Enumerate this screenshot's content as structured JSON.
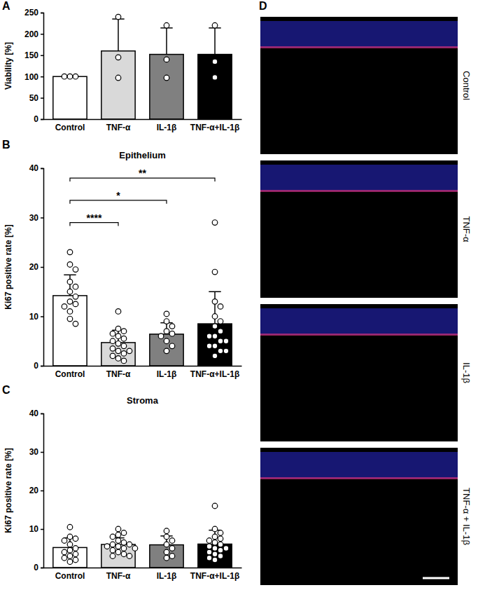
{
  "chart_data": [
    {
      "type": "bar",
      "panel": "A",
      "y_label": "Viability [%]",
      "categories": [
        "Control",
        "TNF-α",
        "IL-1β",
        "TNF-α+IL-1β"
      ],
      "values": [
        100,
        160,
        152,
        152
      ],
      "errors": [
        0,
        75,
        62,
        62
      ],
      "points": [
        [
          100,
          100,
          100
        ],
        [
          240,
          145,
          97
        ],
        [
          220,
          140,
          97
        ],
        [
          220,
          135,
          98
        ]
      ],
      "colors": [
        "#ffffff",
        "#d9d9d9",
        "#808080",
        "#000000"
      ],
      "ylim": [
        0,
        250
      ],
      "yticks": [
        0,
        50,
        100,
        150,
        200,
        250
      ]
    },
    {
      "type": "bar",
      "panel": "B",
      "title": "Epithelium",
      "y_label": "Ki67 positive rate [%]",
      "categories": [
        "Control",
        "TNF-α",
        "IL-1β",
        "TNF-α+IL-1β"
      ],
      "values": [
        14.2,
        4.7,
        6.4,
        8.5
      ],
      "errors": [
        4.2,
        2.5,
        2.3,
        6.5
      ],
      "points": [
        [
          23,
          20.5,
          19.5,
          17,
          16,
          15,
          14,
          13,
          12.5,
          12,
          11,
          9.5,
          8.5
        ],
        [
          11,
          7.5,
          7,
          6.5,
          6,
          5.5,
          5,
          4.5,
          4,
          3.5,
          3,
          3,
          2.5,
          2,
          1.5,
          1
        ],
        [
          10.5,
          9,
          8,
          7,
          6.5,
          6,
          5,
          4,
          3
        ],
        [
          29,
          19,
          13,
          12,
          10,
          9,
          8,
          7,
          6,
          6,
          5,
          5,
          4,
          4,
          3,
          3,
          2
        ]
      ],
      "colors": [
        "#ffffff",
        "#d9d9d9",
        "#808080",
        "#000000"
      ],
      "ylim": [
        0,
        40
      ],
      "yticks": [
        0,
        10,
        20,
        30,
        40
      ],
      "annotations": [
        {
          "from": "Control",
          "to": "TNF-α",
          "label": "****",
          "y": 29
        },
        {
          "from": "Control",
          "to": "IL-1β",
          "label": "*",
          "y": 33.5
        },
        {
          "from": "Control",
          "to": "TNF-α+IL-1β",
          "label": "**",
          "y": 38
        }
      ]
    },
    {
      "type": "bar",
      "panel": "C",
      "title": "Stroma",
      "y_label": "Ki67 positive rate [%]",
      "categories": [
        "Control",
        "TNF-α",
        "IL-1β",
        "TNF-α+IL-1β"
      ],
      "values": [
        5.2,
        6.0,
        5.9,
        6.1
      ],
      "errors": [
        2.5,
        1.7,
        2.3,
        3.6
      ],
      "points": [
        [
          10.5,
          8,
          7.5,
          7,
          6,
          5,
          4.5,
          4,
          3.5,
          3,
          2.5,
          2,
          1.5
        ],
        [
          10,
          9,
          8.5,
          8,
          7,
          6.5,
          6,
          6,
          5.5,
          5.5,
          5,
          5,
          4.5,
          4,
          3.5,
          3,
          3
        ],
        [
          9.5,
          8,
          7,
          6,
          5,
          4,
          3,
          2.5
        ],
        [
          16,
          10,
          9,
          8,
          7.5,
          7,
          6.5,
          6,
          5.5,
          5,
          5,
          4.5,
          4,
          3.5,
          3,
          2.5,
          2
        ]
      ],
      "colors": [
        "#ffffff",
        "#d9d9d9",
        "#808080",
        "#000000"
      ],
      "ylim": [
        0,
        40
      ],
      "yticks": [
        0,
        10,
        20,
        30,
        40
      ]
    }
  ],
  "images": {
    "panel": "D",
    "labels": [
      "Control",
      "TNF-α",
      "IL-1β",
      "TNF-α + IL-1β"
    ]
  }
}
